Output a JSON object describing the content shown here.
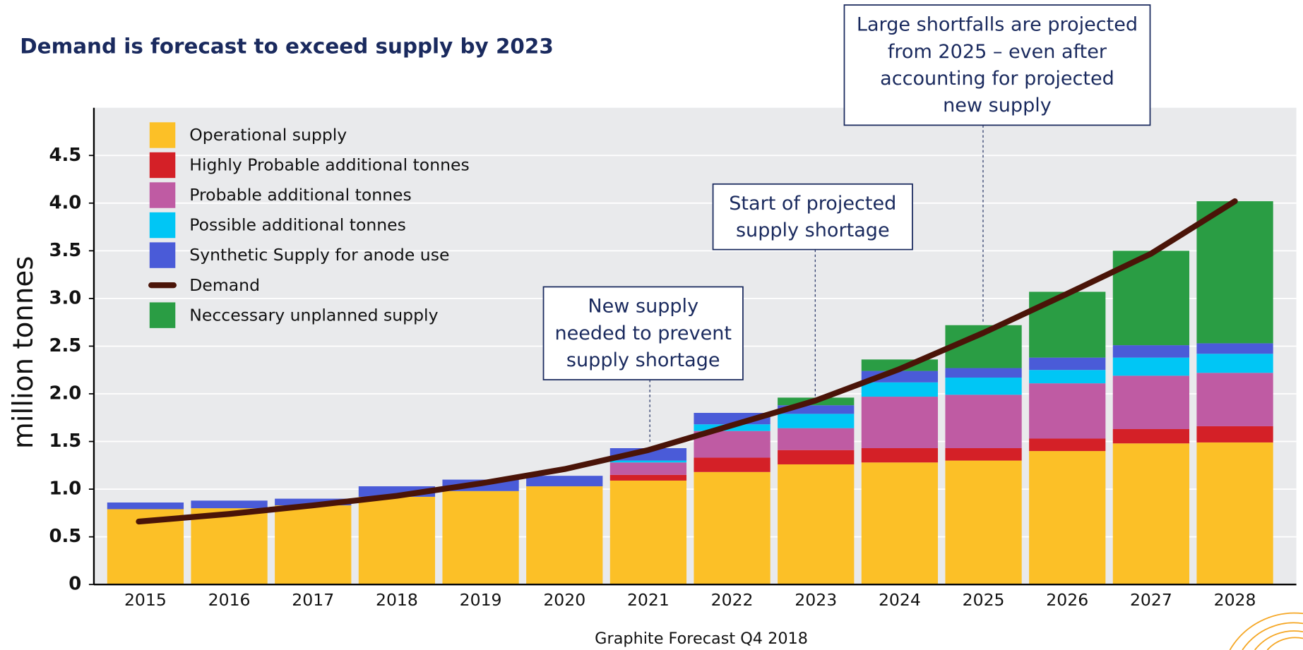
{
  "chart_data": {
    "type": "bar",
    "stacked": true,
    "title": "Demand is forecast to exceed supply by 2023",
    "y_label": "million tonnes",
    "source": "Graphite Forecast Q4 2018",
    "categories": [
      "2015",
      "2016",
      "2017",
      "2018",
      "2019",
      "2020",
      "2021",
      "2022",
      "2023",
      "2024",
      "2025",
      "2026",
      "2027",
      "2028"
    ],
    "ylim": [
      0,
      5
    ],
    "yticks": [
      0,
      0.5,
      {
        "value": 1,
        "label": "1.0"
      },
      1.5,
      {
        "value": 2,
        "label": "2.0"
      },
      2.5,
      {
        "value": 3,
        "label": "3.0"
      },
      3.5,
      {
        "value": 4,
        "label": "4.0"
      },
      4.5
    ],
    "grid": true,
    "legend": "top-left",
    "series": [
      {
        "name": "Operational supply",
        "color": "#fcc027",
        "values": [
          0.79,
          0.8,
          0.83,
          0.92,
          0.98,
          1.03,
          1.09,
          1.18,
          1.26,
          1.28,
          1.3,
          1.4,
          1.48,
          1.49
        ]
      },
      {
        "name": "Highly Probable additional tonnes",
        "color": "#d42027",
        "values": [
          null,
          null,
          null,
          null,
          null,
          null,
          0.06,
          0.15,
          0.15,
          0.15,
          0.13,
          0.13,
          0.15,
          0.17
        ]
      },
      {
        "name": "Probable additional tonnes",
        "color": "#bf5ba3",
        "values": [
          null,
          null,
          null,
          null,
          null,
          null,
          0.13,
          0.28,
          0.23,
          0.54,
          0.56,
          0.58,
          0.56,
          0.56
        ]
      },
      {
        "name": "Possible additional tonnes",
        "color": "#00c6f5",
        "values": [
          null,
          null,
          null,
          null,
          null,
          null,
          0.02,
          0.07,
          0.15,
          0.15,
          0.18,
          0.14,
          0.19,
          0.2
        ]
      },
      {
        "name": "Synthetic Supply for anode use",
        "color": "#4a5bd8",
        "values": [
          0.07,
          0.08,
          0.07,
          0.11,
          0.12,
          0.11,
          0.13,
          0.12,
          0.09,
          0.12,
          0.1,
          0.13,
          0.13,
          0.11
        ]
      },
      {
        "name": "Demand",
        "type": "line",
        "color": "#4a1408",
        "values": [
          0.66,
          0.74,
          0.83,
          0.93,
          1.06,
          1.21,
          1.41,
          1.67,
          1.93,
          2.26,
          2.64,
          3.05,
          3.47,
          4.02
        ]
      },
      {
        "name": "Neccessary unplanned supply",
        "color": "#2a9d44",
        "values": [
          null,
          null,
          null,
          null,
          null,
          null,
          null,
          null,
          0.08,
          0.12,
          0.45,
          0.69,
          0.99,
          1.49
        ]
      }
    ],
    "annotations": [
      {
        "lines": [
          "New supply",
          "needed to prevent",
          "supply shortage"
        ]
      },
      {
        "lines": [
          "Start of projected",
          "supply shortage"
        ]
      },
      {
        "lines": [
          "Large shortfalls are projected",
          "from 2025 – even after",
          "accounting for projected",
          "new supply"
        ]
      }
    ]
  }
}
